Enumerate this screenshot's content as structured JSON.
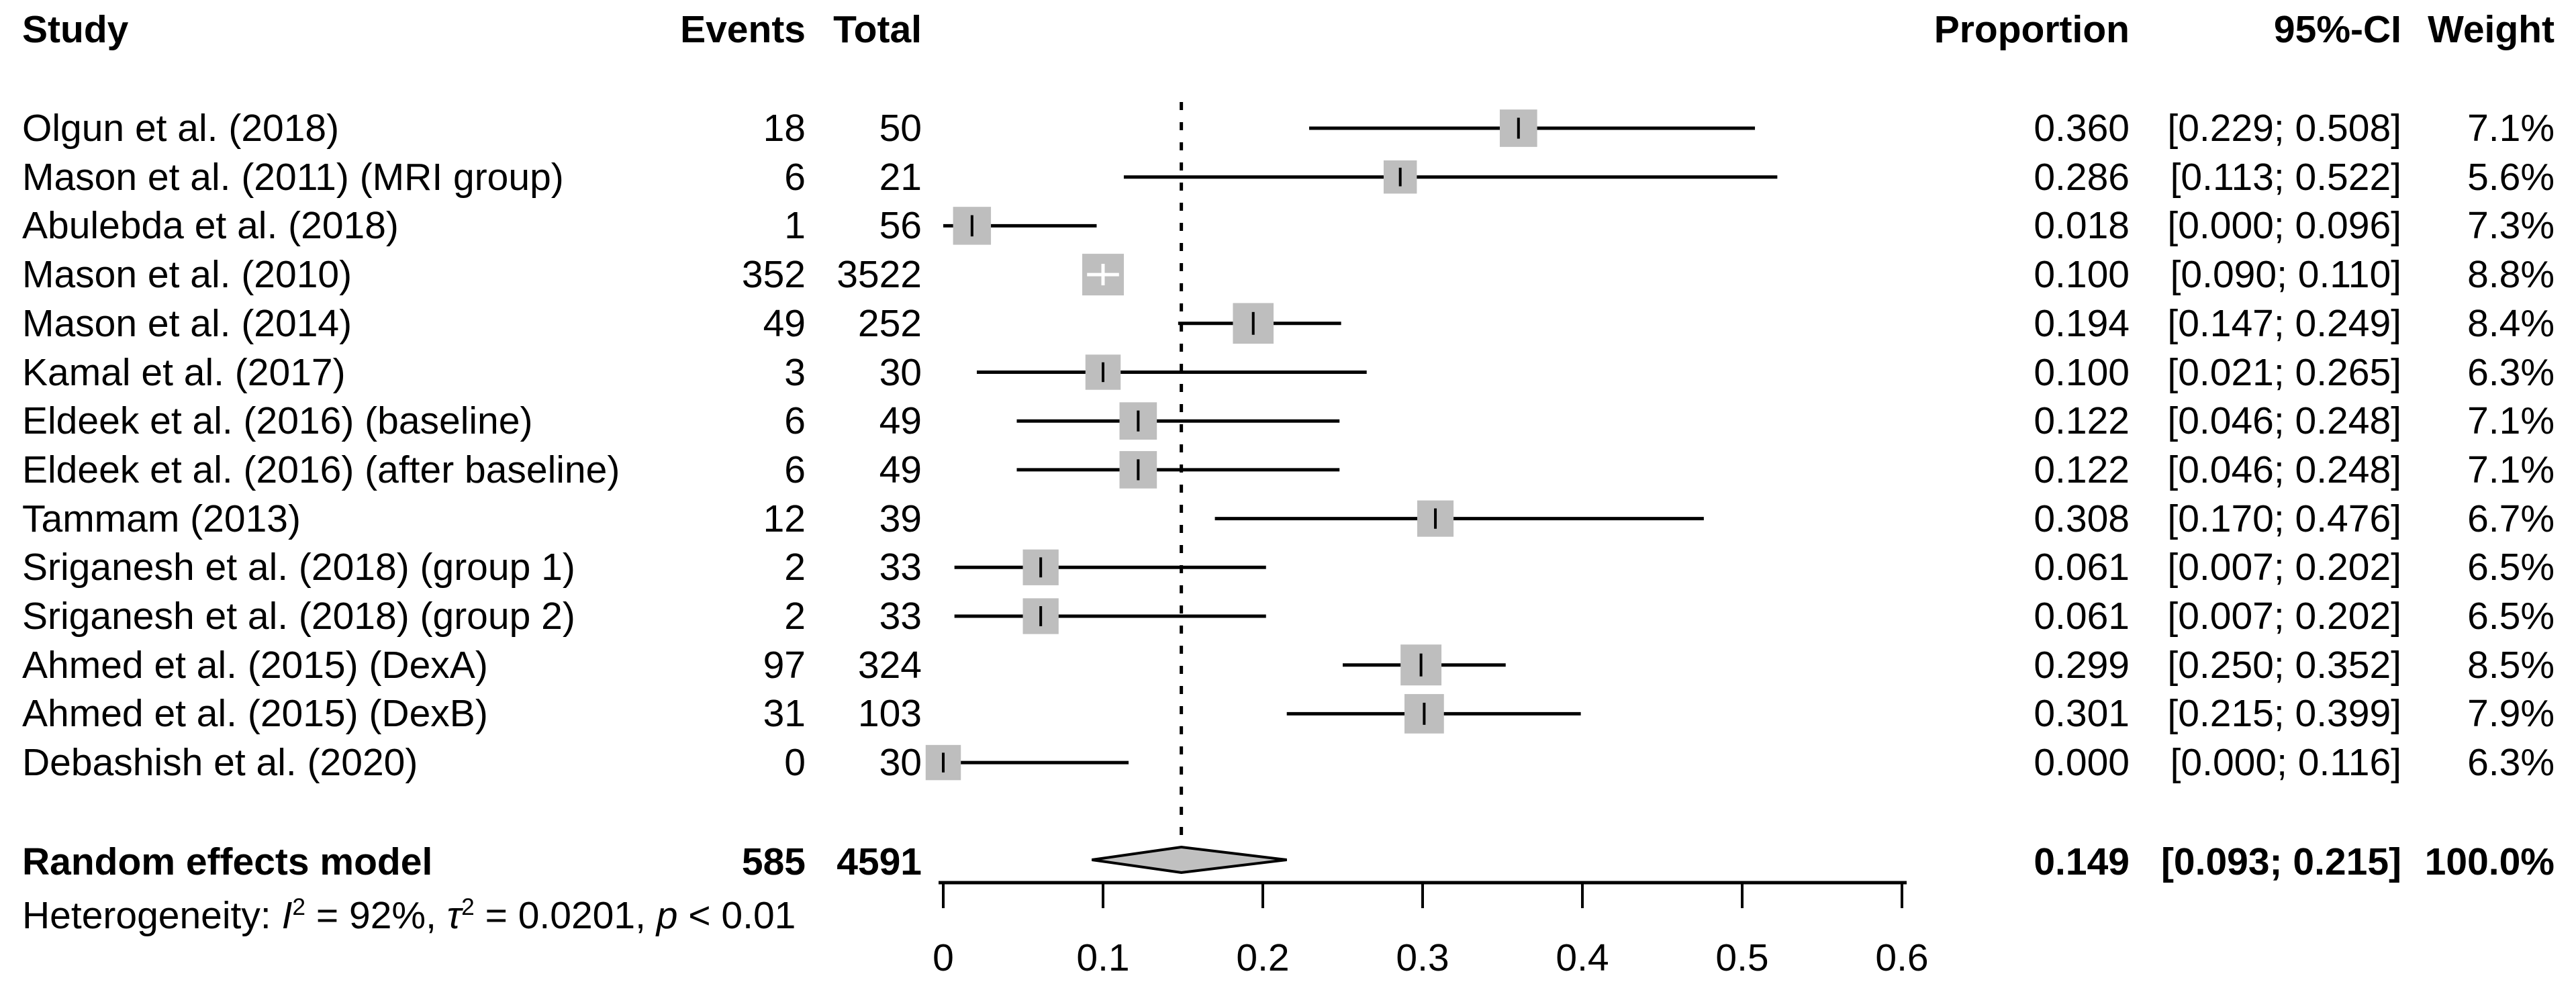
{
  "header": {
    "study": "Study",
    "events": "Events",
    "total": "Total",
    "proportion": "Proportion",
    "ci": "95%-CI",
    "weight": "Weight"
  },
  "summary_row": {
    "label": "Random effects model",
    "events": "585",
    "total": "4591",
    "proportion": "0.149",
    "ci": "[0.093; 0.215]",
    "weight": "100.0%"
  },
  "heterogeneity_parts": [
    {
      "t": "Heterogeneity: "
    },
    {
      "t": "I",
      "i": true
    },
    {
      "t": "2",
      "sup": true
    },
    {
      "t": " = 92%, "
    },
    {
      "t": "τ",
      "i": true
    },
    {
      "t": "2",
      "sup": true
    },
    {
      "t": " = 0.0201, "
    },
    {
      "t": "p",
      "i": true
    },
    {
      "t": " < 0.01"
    }
  ],
  "colors": {
    "square_fill": "#bebebe",
    "diamond_fill": "#c0c0c0",
    "line": "#000000",
    "background": "#ffffff"
  },
  "chart_data": {
    "type": "scatter",
    "subtype": "forest-plot-proportions",
    "xlabel": "",
    "ylabel": "",
    "xlim": [
      0,
      0.6
    ],
    "x_ticks": [
      {
        "v": 0.0,
        "label": "0"
      },
      {
        "v": 0.1,
        "label": "0.1"
      },
      {
        "v": 0.2,
        "label": "0.2"
      },
      {
        "v": 0.3,
        "label": "0.3"
      },
      {
        "v": 0.4,
        "label": "0.4"
      },
      {
        "v": 0.5,
        "label": "0.5"
      },
      {
        "v": 0.6,
        "label": "0.6"
      }
    ],
    "reference_line": 0.149,
    "studies": [
      {
        "label": "Olgun et al. (2018)",
        "events": "18",
        "total": "50",
        "proportion": "0.360",
        "ci": "[0.229; 0.508]",
        "weight": "7.1%",
        "est": 0.36,
        "lo": 0.229,
        "hi": 0.508,
        "w": 7.1
      },
      {
        "label": "Mason et al. (2011) (MRI group)",
        "events": "6",
        "total": "21",
        "proportion": "0.286",
        "ci": "[0.113; 0.522]",
        "weight": "5.6%",
        "est": 0.286,
        "lo": 0.113,
        "hi": 0.522,
        "w": 5.6
      },
      {
        "label": "Abulebda et al. (2018)",
        "events": "1",
        "total": "56",
        "proportion": "0.018",
        "ci": "[0.000; 0.096]",
        "weight": "7.3%",
        "est": 0.018,
        "lo": 0.0,
        "hi": 0.096,
        "w": 7.3
      },
      {
        "label": "Mason et al. (2010)",
        "events": "352",
        "total": "3522",
        "proportion": "0.100",
        "ci": "[0.090; 0.110]",
        "weight": "8.8%",
        "est": 0.1,
        "lo": 0.09,
        "hi": 0.11,
        "w": 8.8
      },
      {
        "label": "Mason et al. (2014)",
        "events": "49",
        "total": "252",
        "proportion": "0.194",
        "ci": "[0.147; 0.249]",
        "weight": "8.4%",
        "est": 0.194,
        "lo": 0.147,
        "hi": 0.249,
        "w": 8.4
      },
      {
        "label": "Kamal et al. (2017)",
        "events": "3",
        "total": "30",
        "proportion": "0.100",
        "ci": "[0.021; 0.265]",
        "weight": "6.3%",
        "est": 0.1,
        "lo": 0.021,
        "hi": 0.265,
        "w": 6.3
      },
      {
        "label": "Eldeek et al. (2016) (baseline)",
        "events": "6",
        "total": "49",
        "proportion": "0.122",
        "ci": "[0.046; 0.248]",
        "weight": "7.1%",
        "est": 0.122,
        "lo": 0.046,
        "hi": 0.248,
        "w": 7.1
      },
      {
        "label": "Eldeek et al. (2016) (after baseline)",
        "events": "6",
        "total": "49",
        "proportion": "0.122",
        "ci": "[0.046; 0.248]",
        "weight": "7.1%",
        "est": 0.122,
        "lo": 0.046,
        "hi": 0.248,
        "w": 7.1
      },
      {
        "label": "Tammam (2013)",
        "events": "12",
        "total": "39",
        "proportion": "0.308",
        "ci": "[0.170; 0.476]",
        "weight": "6.7%",
        "est": 0.308,
        "lo": 0.17,
        "hi": 0.476,
        "w": 6.7
      },
      {
        "label": "Sriganesh et al. (2018) (group 1)",
        "events": "2",
        "total": "33",
        "proportion": "0.061",
        "ci": "[0.007; 0.202]",
        "weight": "6.5%",
        "est": 0.061,
        "lo": 0.007,
        "hi": 0.202,
        "w": 6.5
      },
      {
        "label": "Sriganesh et al. (2018) (group 2)",
        "events": "2",
        "total": "33",
        "proportion": "0.061",
        "ci": "[0.007; 0.202]",
        "weight": "6.5%",
        "est": 0.061,
        "lo": 0.007,
        "hi": 0.202,
        "w": 6.5
      },
      {
        "label": "Ahmed et al. (2015) (DexA)",
        "events": "97",
        "total": "324",
        "proportion": "0.299",
        "ci": "[0.250; 0.352]",
        "weight": "8.5%",
        "est": 0.299,
        "lo": 0.25,
        "hi": 0.352,
        "w": 8.5
      },
      {
        "label": "Ahmed et al. (2015) (DexB)",
        "events": "31",
        "total": "103",
        "proportion": "0.301",
        "ci": "[0.215; 0.399]",
        "weight": "7.9%",
        "est": 0.301,
        "lo": 0.215,
        "hi": 0.399,
        "w": 7.9
      },
      {
        "label": "Debashish et al. (2020)",
        "events": "0",
        "total": "30",
        "proportion": "0.000",
        "ci": "[0.000; 0.116]",
        "weight": "6.3%",
        "est": 0.0,
        "lo": 0.0,
        "hi": 0.116,
        "w": 6.3
      }
    ],
    "summary": {
      "label": "Random effects model",
      "events": 585,
      "total": 4591,
      "est": 0.149,
      "lo": 0.093,
      "hi": 0.215,
      "weight_pct": 100.0
    },
    "heterogeneity": {
      "I2": "92%",
      "tau2": "0.0201",
      "p": "< 0.01"
    }
  }
}
